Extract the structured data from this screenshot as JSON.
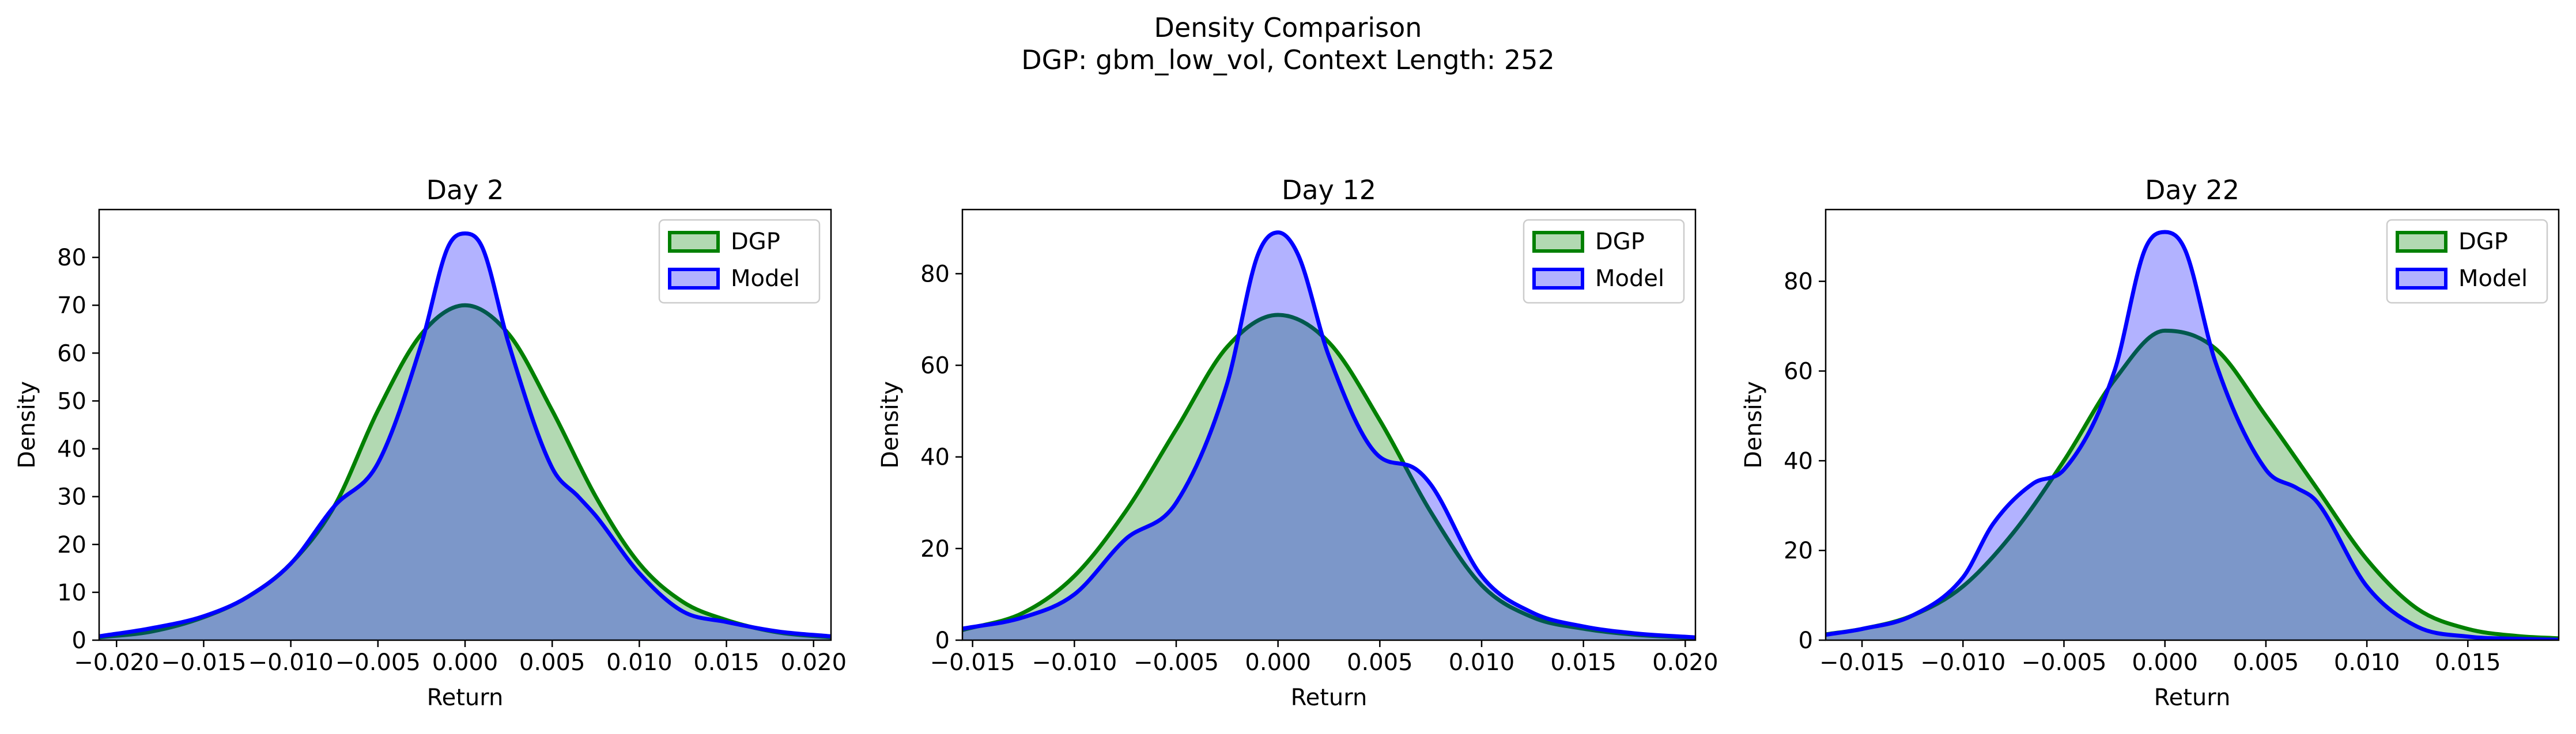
{
  "figure": {
    "suptitle_line1": "Density Comparison",
    "suptitle_line2": "DGP: gbm_low_vol, Context Length: 252"
  },
  "colors": {
    "dgp_line": "#008000",
    "dgp_fill": "#008000",
    "model_line": "#0000ff",
    "model_fill": "#0000ff"
  },
  "chart_data": [
    {
      "type": "area",
      "title": "Day 2",
      "xlabel": "Return",
      "ylabel": "Density",
      "xlim": [
        -0.021,
        0.021
      ],
      "ylim": [
        0,
        90
      ],
      "xticks": [
        -0.02,
        -0.015,
        -0.01,
        -0.005,
        0.0,
        0.005,
        0.01,
        0.015,
        0.02
      ],
      "xtick_labels": [
        "−0.020",
        "−0.015",
        "−0.010",
        "−0.005",
        "0.000",
        "0.005",
        "0.010",
        "0.015",
        "0.020"
      ],
      "yticks": [
        0,
        10,
        20,
        30,
        40,
        50,
        60,
        70,
        80
      ],
      "yticks_labels": [
        "0",
        "10",
        "20",
        "30",
        "40",
        "50",
        "60",
        "70",
        "80"
      ],
      "legend": {
        "location": "upper-right",
        "entries": [
          "DGP",
          "Model"
        ]
      },
      "grid": false,
      "series": [
        {
          "name": "DGP",
          "x": [
            -0.021,
            -0.018,
            -0.015,
            -0.0125,
            -0.01,
            -0.0075,
            -0.005,
            -0.0025,
            0.0,
            0.0025,
            0.005,
            0.0075,
            0.01,
            0.0125,
            0.015,
            0.018,
            0.021
          ],
          "y": [
            0.6,
            1.8,
            4.8,
            9,
            16,
            28,
            48,
            64,
            70,
            64,
            48,
            30,
            16,
            8,
            4.2,
            1.6,
            0.6
          ]
        },
        {
          "name": "Model",
          "x": [
            -0.021,
            -0.018,
            -0.015,
            -0.0125,
            -0.01,
            -0.0075,
            -0.005,
            -0.0025,
            -0.001,
            0.0,
            0.001,
            0.0025,
            0.005,
            0.0065,
            0.0075,
            0.01,
            0.0125,
            0.015,
            0.018,
            0.021
          ],
          "y": [
            0.8,
            2.5,
            5,
            9,
            16,
            28,
            37,
            62,
            82,
            85,
            82,
            62,
            36,
            30,
            26,
            14,
            6,
            3.8,
            1.8,
            0.8
          ]
        }
      ]
    },
    {
      "type": "area",
      "title": "Day 12",
      "xlabel": "Return",
      "ylabel": "Density",
      "xlim": [
        -0.0155,
        0.0205
      ],
      "ylim": [
        0,
        94
      ],
      "xticks": [
        -0.015,
        -0.01,
        -0.005,
        0.0,
        0.005,
        0.01,
        0.015,
        0.02
      ],
      "xtick_labels": [
        "−0.015",
        "−0.010",
        "−0.005",
        "0.000",
        "0.005",
        "0.010",
        "0.015",
        "0.020"
      ],
      "yticks": [
        0,
        20,
        40,
        60,
        80
      ],
      "yticks_labels": [
        "0",
        "20",
        "40",
        "60",
        "80"
      ],
      "legend": {
        "location": "upper-right",
        "entries": [
          "DGP",
          "Model"
        ]
      },
      "grid": false,
      "series": [
        {
          "name": "DGP",
          "x": [
            -0.0155,
            -0.0125,
            -0.01,
            -0.0075,
            -0.005,
            -0.0025,
            0.0,
            0.0025,
            0.005,
            0.0075,
            0.01,
            0.0125,
            0.015,
            0.0175,
            0.0205
          ],
          "y": [
            2.2,
            6,
            14,
            28,
            46,
            64,
            71,
            65,
            48,
            28,
            12,
            5,
            2.5,
            1.2,
            0.5
          ]
        },
        {
          "name": "Model",
          "x": [
            -0.0155,
            -0.0125,
            -0.01,
            -0.0075,
            -0.005,
            -0.0025,
            -0.001,
            0.0,
            0.001,
            0.0025,
            0.005,
            0.0065,
            0.0075,
            0.01,
            0.0125,
            0.015,
            0.0175,
            0.0205
          ],
          "y": [
            2.5,
            5,
            10,
            22,
            30,
            56,
            84,
            89,
            84,
            62,
            40,
            38,
            34,
            14,
            6,
            3,
            1.5,
            0.6
          ]
        }
      ]
    },
    {
      "type": "area",
      "title": "Day 22",
      "xlabel": "Return",
      "ylabel": "Density",
      "xlim": [
        -0.0168,
        0.0195
      ],
      "ylim": [
        0,
        96
      ],
      "xticks": [
        -0.015,
        -0.01,
        -0.005,
        0.0,
        0.005,
        0.01,
        0.015
      ],
      "xtick_labels": [
        "−0.015",
        "−0.010",
        "−0.005",
        "0.000",
        "0.005",
        "0.010",
        "0.015"
      ],
      "yticks": [
        0,
        20,
        40,
        60,
        80
      ],
      "yticks_labels": [
        "0",
        "20",
        "40",
        "60",
        "80"
      ],
      "legend": {
        "location": "upper-right",
        "entries": [
          "DGP",
          "Model"
        ]
      },
      "grid": false,
      "series": [
        {
          "name": "DGP",
          "x": [
            -0.0168,
            -0.015,
            -0.0125,
            -0.01,
            -0.0075,
            -0.005,
            -0.0025,
            0.0,
            0.0025,
            0.005,
            0.0075,
            0.01,
            0.0125,
            0.015,
            0.0175,
            0.0195
          ],
          "y": [
            1.3,
            2.5,
            5.5,
            12,
            24,
            40,
            58,
            69,
            65,
            50,
            34,
            18,
            7,
            2.5,
            0.9,
            0.4
          ]
        },
        {
          "name": "Model",
          "x": [
            -0.0168,
            -0.015,
            -0.0125,
            -0.01,
            -0.0085,
            -0.0065,
            -0.005,
            -0.0025,
            -0.001,
            0.0,
            0.001,
            0.0025,
            0.005,
            0.0065,
            0.0075,
            0.01,
            0.0125,
            0.015,
            0.0175,
            0.0195
          ],
          "y": [
            1.2,
            2.5,
            5.5,
            14,
            26,
            35,
            38,
            60,
            87,
            91,
            87,
            62,
            38,
            34,
            31,
            12,
            3,
            0.8,
            0.3,
            0.1
          ]
        }
      ]
    }
  ]
}
